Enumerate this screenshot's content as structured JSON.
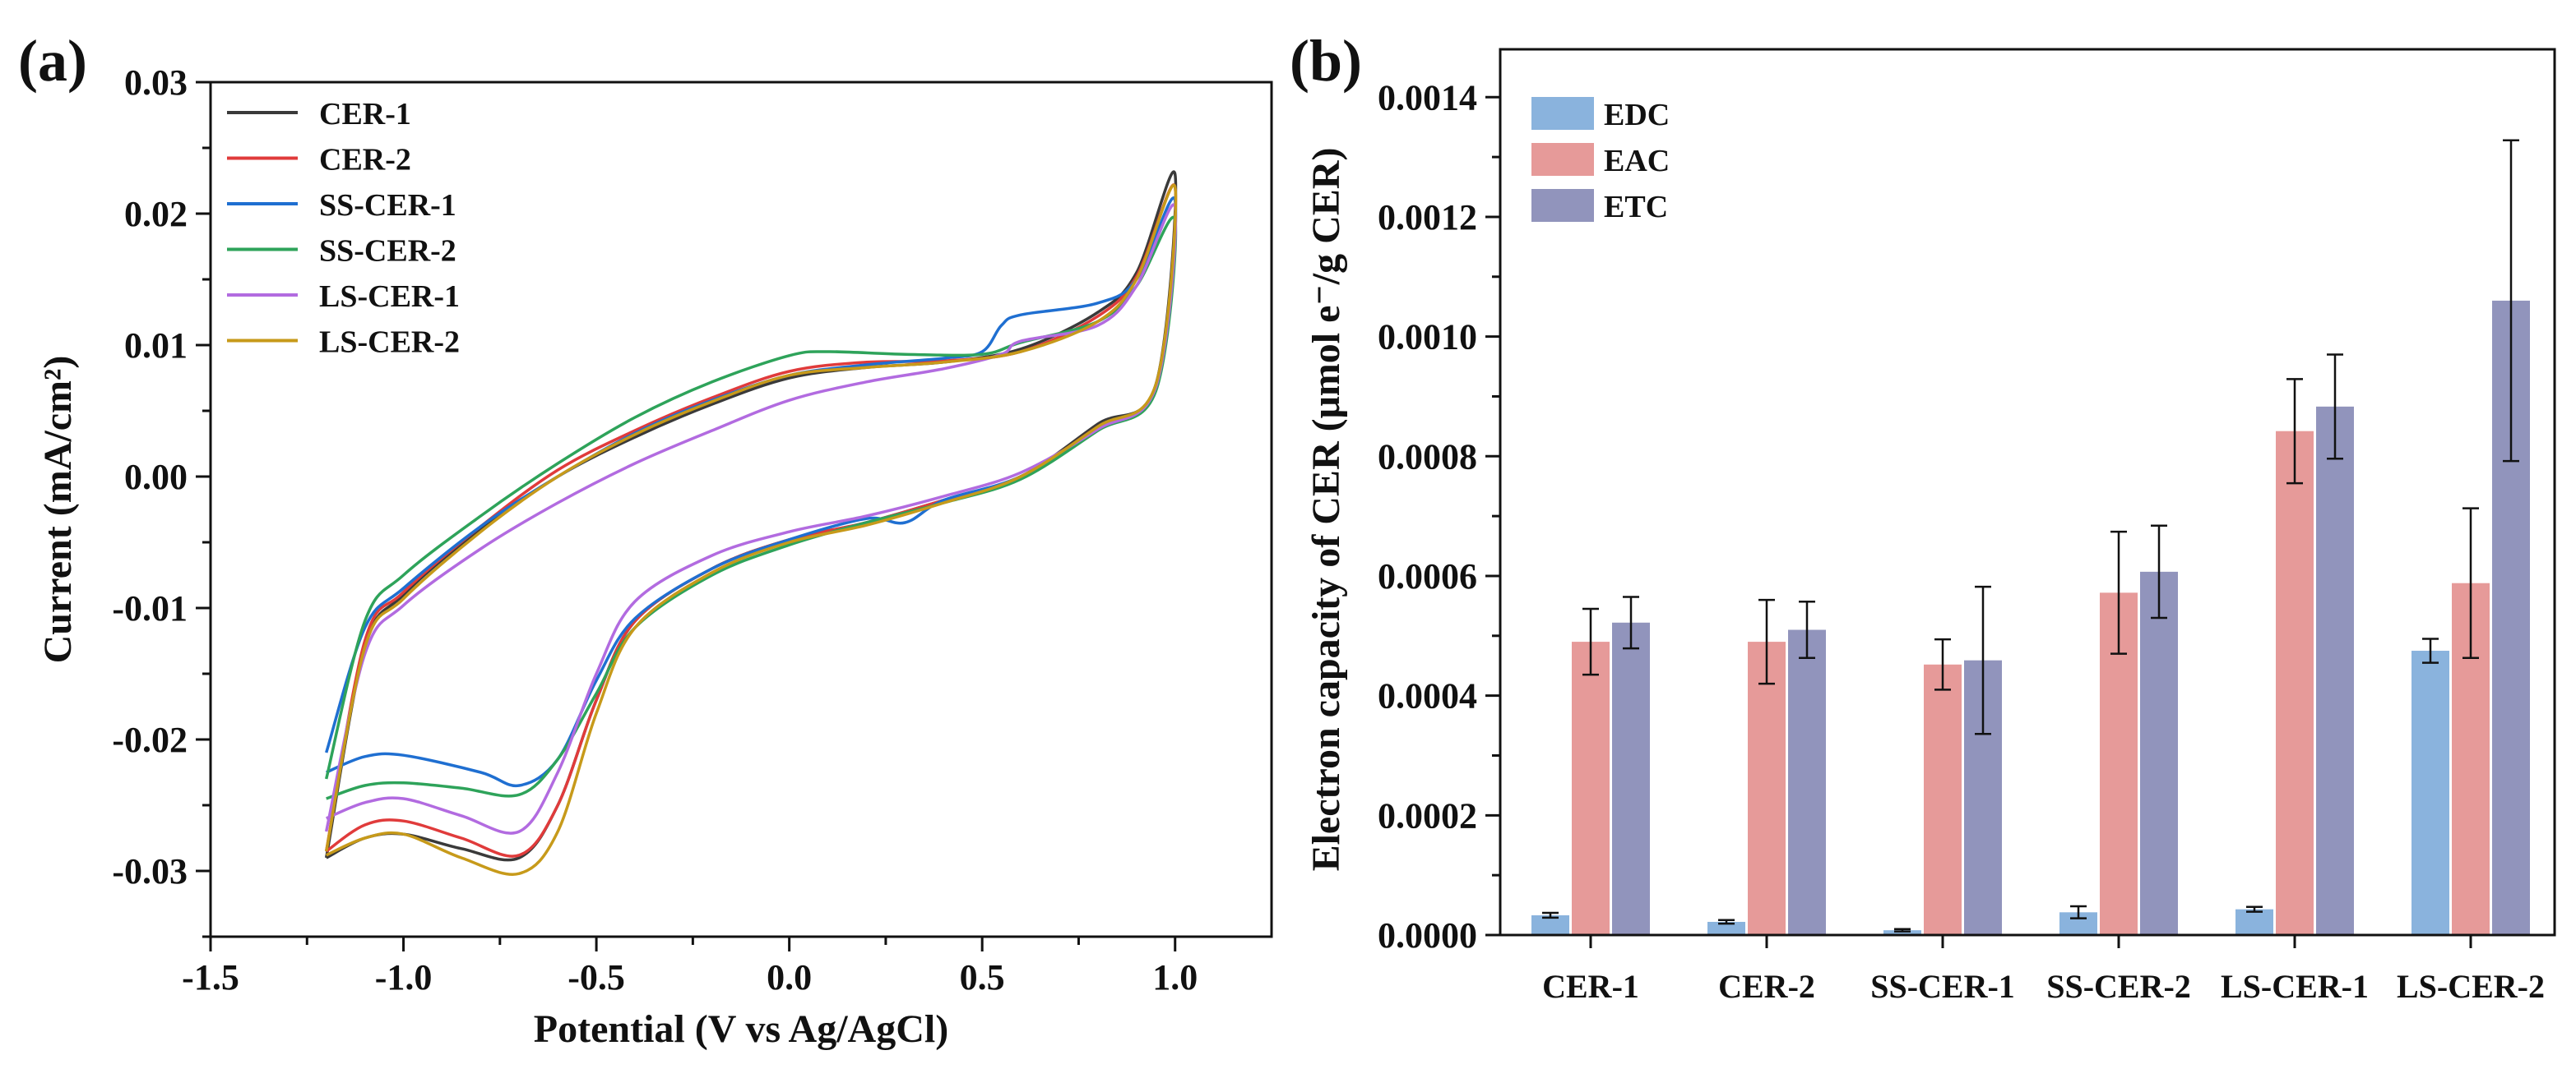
{
  "panels": {
    "a": {
      "label": "(a)"
    },
    "b": {
      "label": "(b)"
    }
  },
  "chart_data": [
    {
      "id": "a",
      "type": "line",
      "title": "",
      "xlabel": "Potential (V vs Ag/AgCl)",
      "ylabel": "Current (mA/cm²)",
      "xlim": [
        -1.5,
        1.25
      ],
      "ylim": [
        -0.035,
        0.03
      ],
      "xticks": [
        -1.5,
        -1.0,
        -0.5,
        0.0,
        0.5,
        1.0
      ],
      "xtick_labels": [
        "-1.5",
        "-1.0",
        "-0.5",
        "0.0",
        "0.5",
        "1.0"
      ],
      "yticks": [
        0.03,
        0.02,
        0.01,
        0.0,
        -0.01,
        -0.02,
        -0.03
      ],
      "ytick_labels": [
        "0.03",
        "0.02",
        "0.01",
        "0.00",
        "-0.01",
        "-0.02",
        "-0.03"
      ],
      "legend": "top-left",
      "series": [
        {
          "name": "CER-1",
          "color": "#3a3a3a",
          "upper": [
            [
              -1.2,
              -0.029
            ],
            [
              -1.1,
              -0.013
            ],
            [
              -1.0,
              -0.009
            ],
            [
              -0.8,
              -0.004
            ],
            [
              -0.6,
              0.0
            ],
            [
              -0.4,
              0.003
            ],
            [
              -0.2,
              0.0055
            ],
            [
              0.0,
              0.0075
            ],
            [
              0.2,
              0.0083
            ],
            [
              0.4,
              0.0087
            ],
            [
              0.6,
              0.0097
            ],
            [
              0.8,
              0.0125
            ],
            [
              0.9,
              0.0155
            ],
            [
              1.0,
              0.023
            ]
          ],
          "lower": [
            [
              1.0,
              0.023
            ],
            [
              0.95,
              0.007
            ],
            [
              0.8,
              0.004
            ],
            [
              0.6,
              0.0
            ],
            [
              0.4,
              -0.0018
            ],
            [
              0.2,
              -0.0035
            ],
            [
              0.0,
              -0.0048
            ],
            [
              -0.2,
              -0.007
            ],
            [
              -0.4,
              -0.011
            ],
            [
              -0.5,
              -0.017
            ],
            [
              -0.6,
              -0.025
            ],
            [
              -0.7,
              -0.029
            ],
            [
              -0.85,
              -0.0283
            ],
            [
              -1.0,
              -0.0272
            ],
            [
              -1.1,
              -0.0275
            ],
            [
              -1.2,
              -0.029
            ]
          ]
        },
        {
          "name": "CER-2",
          "color": "#e03b3b",
          "upper": [
            [
              -1.2,
              -0.0285
            ],
            [
              -1.1,
              -0.0125
            ],
            [
              -1.0,
              -0.0088
            ],
            [
              -0.8,
              -0.0038
            ],
            [
              -0.6,
              0.0005
            ],
            [
              -0.4,
              0.0035
            ],
            [
              -0.2,
              0.006
            ],
            [
              0.0,
              0.008
            ],
            [
              0.2,
              0.0087
            ],
            [
              0.4,
              0.0088
            ],
            [
              0.6,
              0.0095
            ],
            [
              0.8,
              0.0122
            ],
            [
              0.9,
              0.0152
            ],
            [
              1.0,
              0.022
            ]
          ],
          "lower": [
            [
              1.0,
              0.022
            ],
            [
              0.95,
              0.0068
            ],
            [
              0.8,
              0.0038
            ],
            [
              0.6,
              0.0
            ],
            [
              0.4,
              -0.0018
            ],
            [
              0.2,
              -0.0035
            ],
            [
              0.0,
              -0.0048
            ],
            [
              -0.2,
              -0.007
            ],
            [
              -0.4,
              -0.011
            ],
            [
              -0.5,
              -0.017
            ],
            [
              -0.6,
              -0.025
            ],
            [
              -0.7,
              -0.0288
            ],
            [
              -0.85,
              -0.0275
            ],
            [
              -1.0,
              -0.0262
            ],
            [
              -1.1,
              -0.0265
            ],
            [
              -1.2,
              -0.0285
            ]
          ]
        },
        {
          "name": "SS-CER-1",
          "color": "#1f6fd1",
          "upper": [
            [
              -1.2,
              -0.021
            ],
            [
              -1.1,
              -0.0115
            ],
            [
              -1.0,
              -0.0085
            ],
            [
              -0.8,
              -0.0038
            ],
            [
              -0.6,
              0.0
            ],
            [
              -0.4,
              0.0033
            ],
            [
              -0.2,
              0.0058
            ],
            [
              0.0,
              0.0077
            ],
            [
              0.2,
              0.0085
            ],
            [
              0.4,
              0.009
            ],
            [
              0.5,
              0.0095
            ],
            [
              0.55,
              0.0115
            ],
            [
              0.6,
              0.0123
            ],
            [
              0.8,
              0.0132
            ],
            [
              0.9,
              0.015
            ],
            [
              1.0,
              0.021
            ]
          ],
          "lower": [
            [
              1.0,
              0.021
            ],
            [
              0.95,
              0.0068
            ],
            [
              0.8,
              0.0036
            ],
            [
              0.6,
              0.0
            ],
            [
              0.4,
              -0.0018
            ],
            [
              0.3,
              -0.0035
            ],
            [
              0.2,
              -0.0032
            ],
            [
              0.0,
              -0.0048
            ],
            [
              -0.2,
              -0.007
            ],
            [
              -0.4,
              -0.0108
            ],
            [
              -0.5,
              -0.0155
            ],
            [
              -0.6,
              -0.0215
            ],
            [
              -0.7,
              -0.0235
            ],
            [
              -0.8,
              -0.0225
            ],
            [
              -1.0,
              -0.0212
            ],
            [
              -1.1,
              -0.0213
            ],
            [
              -1.2,
              -0.0225
            ]
          ]
        },
        {
          "name": "SS-CER-2",
          "color": "#2ea35a",
          "upper": [
            [
              -1.2,
              -0.023
            ],
            [
              -1.1,
              -0.011
            ],
            [
              -1.0,
              -0.0075
            ],
            [
              -0.8,
              -0.003
            ],
            [
              -0.6,
              0.001
            ],
            [
              -0.4,
              0.0045
            ],
            [
              -0.2,
              0.0072
            ],
            [
              0.0,
              0.0092
            ],
            [
              0.1,
              0.0095
            ],
            [
              0.3,
              0.0093
            ],
            [
              0.5,
              0.0093
            ],
            [
              0.6,
              0.0102
            ],
            [
              0.8,
              0.0118
            ],
            [
              0.9,
              0.0145
            ],
            [
              1.0,
              0.0195
            ]
          ],
          "lower": [
            [
              1.0,
              0.0195
            ],
            [
              0.95,
              0.0065
            ],
            [
              0.8,
              0.0035
            ],
            [
              0.6,
              -0.0002
            ],
            [
              0.4,
              -0.002
            ],
            [
              0.2,
              -0.0035
            ],
            [
              0.0,
              -0.0052
            ],
            [
              -0.2,
              -0.0075
            ],
            [
              -0.4,
              -0.0115
            ],
            [
              -0.5,
              -0.0165
            ],
            [
              -0.6,
              -0.0215
            ],
            [
              -0.7,
              -0.0242
            ],
            [
              -0.85,
              -0.0237
            ],
            [
              -1.0,
              -0.0233
            ],
            [
              -1.1,
              -0.0235
            ],
            [
              -1.2,
              -0.0245
            ]
          ]
        },
        {
          "name": "LS-CER-1",
          "color": "#b26be0",
          "upper": [
            [
              -1.2,
              -0.027
            ],
            [
              -1.1,
              -0.0135
            ],
            [
              -1.0,
              -0.0098
            ],
            [
              -0.8,
              -0.0055
            ],
            [
              -0.6,
              -0.002
            ],
            [
              -0.4,
              0.001
            ],
            [
              -0.2,
              0.0035
            ],
            [
              0.0,
              0.0058
            ],
            [
              0.2,
              0.0072
            ],
            [
              0.4,
              0.0082
            ],
            [
              0.55,
              0.0093
            ],
            [
              0.6,
              0.0103
            ],
            [
              0.8,
              0.0115
            ],
            [
              0.9,
              0.0145
            ],
            [
              1.0,
              0.0205
            ]
          ],
          "lower": [
            [
              1.0,
              0.0205
            ],
            [
              0.95,
              0.0068
            ],
            [
              0.8,
              0.0036
            ],
            [
              0.6,
              0.0003
            ],
            [
              0.4,
              -0.0015
            ],
            [
              0.2,
              -0.003
            ],
            [
              0.0,
              -0.0042
            ],
            [
              -0.2,
              -0.006
            ],
            [
              -0.4,
              -0.0095
            ],
            [
              -0.5,
              -0.015
            ],
            [
              -0.6,
              -0.0225
            ],
            [
              -0.7,
              -0.027
            ],
            [
              -0.85,
              -0.0258
            ],
            [
              -1.0,
              -0.0245
            ],
            [
              -1.1,
              -0.0248
            ],
            [
              -1.2,
              -0.026
            ]
          ]
        },
        {
          "name": "LS-CER-2",
          "color": "#c79a1a",
          "upper": [
            [
              -1.2,
              -0.0285
            ],
            [
              -1.1,
              -0.013
            ],
            [
              -1.0,
              -0.0093
            ],
            [
              -0.8,
              -0.0042
            ],
            [
              -0.6,
              0.0
            ],
            [
              -0.4,
              0.0032
            ],
            [
              -0.2,
              0.0057
            ],
            [
              0.0,
              0.0077
            ],
            [
              0.2,
              0.0083
            ],
            [
              0.4,
              0.0087
            ],
            [
              0.6,
              0.0095
            ],
            [
              0.8,
              0.0118
            ],
            [
              0.9,
              0.015
            ],
            [
              1.0,
              0.022
            ]
          ],
          "lower": [
            [
              1.0,
              0.022
            ],
            [
              0.95,
              0.007
            ],
            [
              0.8,
              0.0038
            ],
            [
              0.6,
              0.0
            ],
            [
              0.4,
              -0.002
            ],
            [
              0.2,
              -0.0037
            ],
            [
              0.0,
              -0.005
            ],
            [
              -0.2,
              -0.0073
            ],
            [
              -0.4,
              -0.0115
            ],
            [
              -0.5,
              -0.018
            ],
            [
              -0.6,
              -0.027
            ],
            [
              -0.7,
              -0.0302
            ],
            [
              -0.85,
              -0.029
            ],
            [
              -1.0,
              -0.0272
            ],
            [
              -1.1,
              -0.0275
            ],
            [
              -1.2,
              -0.0288
            ]
          ]
        }
      ]
    },
    {
      "id": "b",
      "type": "bar",
      "title": "",
      "xlabel": "",
      "ylabel": "Electron capacity of CER (μmol e⁻/g CER)",
      "ylim": [
        0,
        0.00148
      ],
      "yticks": [
        0,
        0.0002,
        0.0004,
        0.0006,
        0.0008,
        0.001,
        0.0012,
        0.0014
      ],
      "ytick_labels": [
        "0.0000",
        "0.0002",
        "0.0004",
        "0.0006",
        "0.0008",
        "0.0010",
        "0.0012",
        "0.0014"
      ],
      "legend": "top-left",
      "categories": [
        "CER-1",
        "CER-2",
        "SS-CER-1",
        "SS-CER-2",
        "LS-CER-1",
        "LS-CER-2"
      ],
      "series": [
        {
          "name": "EDC",
          "color": "#8ab3dd",
          "values": [
            3.3e-05,
            2.2e-05,
            8e-06,
            3.8e-05,
            4.3e-05,
            0.000475
          ],
          "errors": [
            4e-06,
            3e-06,
            2e-06,
            1e-05,
            4e-06,
            2e-05
          ]
        },
        {
          "name": "EAC",
          "color": "#e69a99",
          "values": [
            0.00049,
            0.00049,
            0.000452,
            0.000572,
            0.000842,
            0.000588
          ],
          "errors": [
            5.5e-05,
            7e-05,
            4.2e-05,
            0.000102,
            8.7e-05,
            0.000125
          ]
        },
        {
          "name": "ETC",
          "color": "#9194bc",
          "values": [
            0.000522,
            0.00051,
            0.000459,
            0.000607,
            0.000883,
            0.00106
          ],
          "errors": [
            4.3e-05,
            4.7e-05,
            0.000123,
            7.7e-05,
            8.7e-05,
            0.000268
          ]
        }
      ]
    }
  ]
}
